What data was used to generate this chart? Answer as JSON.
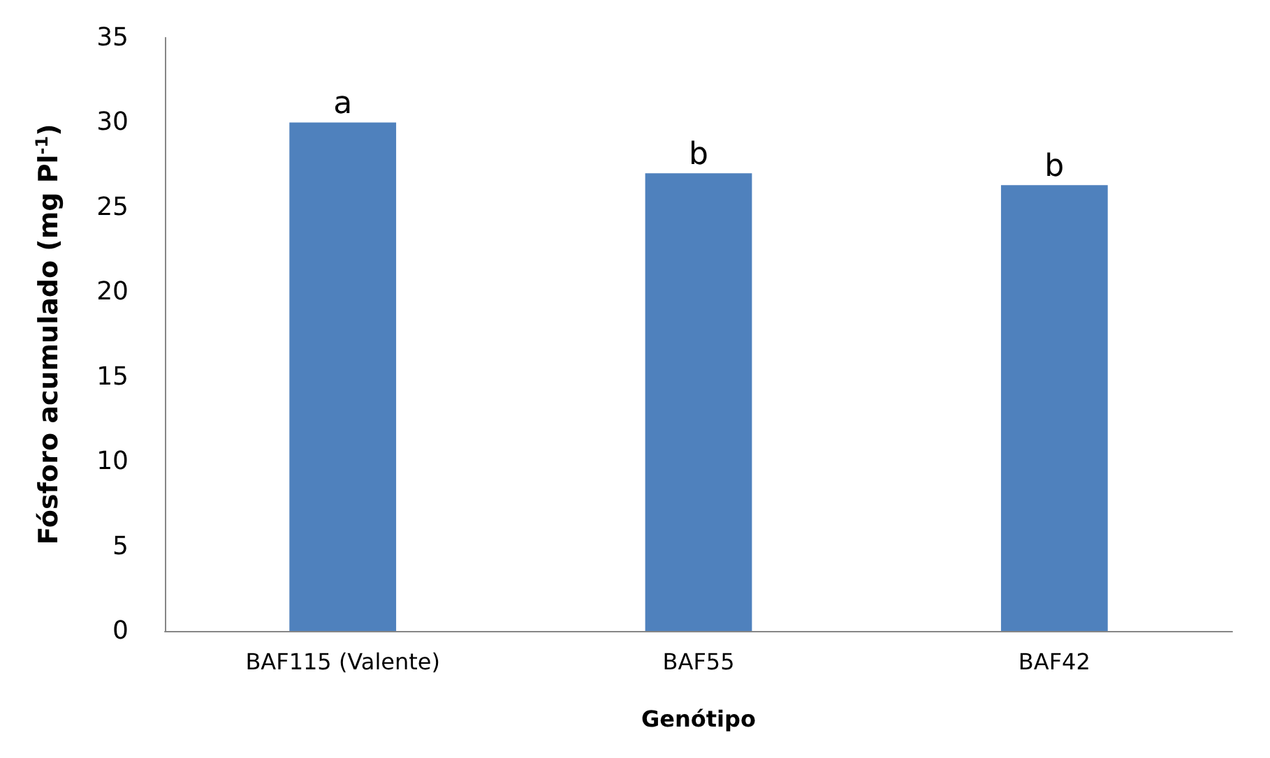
{
  "chart_data": {
    "type": "bar",
    "xlabel": "Genótipo",
    "ylabel": "Fósforo acumulado (mg Pl$^{-1}$)",
    "categories": [
      "BAF115 (Valente)",
      "BAF55",
      "BAF42"
    ],
    "values": [
      30,
      27,
      26.3
    ],
    "color": "#4f81bd",
    "ylim": [
      0,
      35
    ],
    "yticks": [
      0,
      5,
      10,
      15,
      20,
      25,
      30,
      35
    ],
    "grid": false,
    "annotations": [
      {
        "text": "a",
        "x": "BAF115 (Valente)",
        "y": 30
      },
      {
        "text": "b",
        "x": "BAF55",
        "y": 27
      },
      {
        "text": "b",
        "x": "BAF42",
        "y": 26.3
      }
    ]
  }
}
